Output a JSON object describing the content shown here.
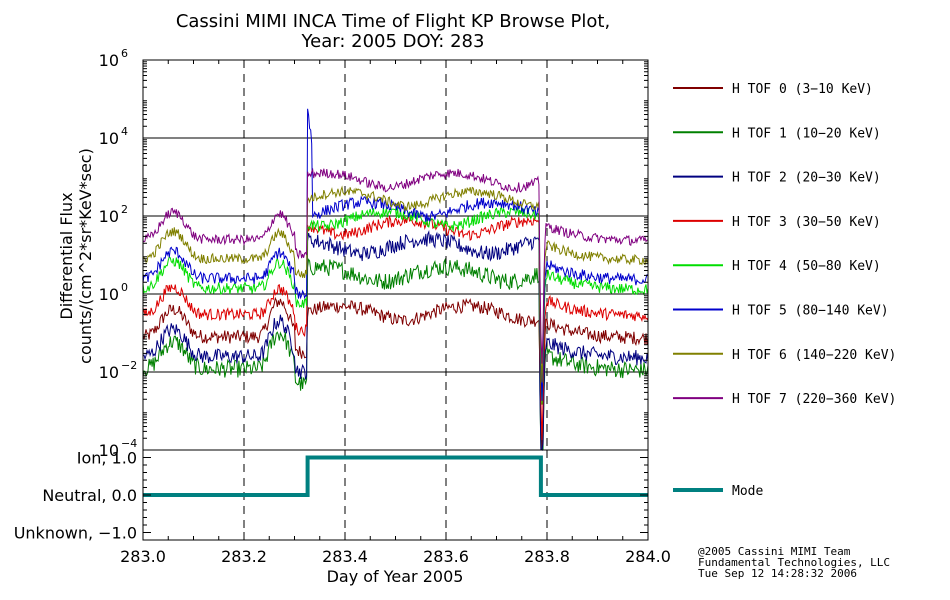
{
  "chart_data": [
    {
      "type": "line",
      "title": "Cassini MIMI INCA Time of Flight KP Browse Plot,",
      "subtitle": "Year: 2005 DOY: 283",
      "ylabel_line1": "Differential Flux",
      "ylabel_line2": "counts/(cm^2*sr*KeV*sec)",
      "yscale": "log",
      "ylim": [
        0.0001,
        1000000
      ],
      "y_ticks": [
        {
          "value": 1000000,
          "base": "10",
          "exp": "6"
        },
        {
          "value": 10000,
          "base": "10",
          "exp": "4"
        },
        {
          "value": 100,
          "base": "10",
          "exp": "2"
        },
        {
          "value": 1,
          "base": "10",
          "exp": "0"
        },
        {
          "value": 0.01,
          "base": "10",
          "exp": "−2"
        },
        {
          "value": 0.0001,
          "base": "10",
          "exp": "−4"
        }
      ],
      "xlim": [
        283.0,
        284.0
      ],
      "grid_vertical": [
        283.2,
        283.4,
        283.6,
        283.8
      ],
      "grid_horizontal": [
        10000,
        100,
        1,
        0.01
      ],
      "legend_position": "right",
      "series": [
        {
          "name": "H TOF 0 (3−10 KeV)",
          "color": "#800000",
          "level": 0.08,
          "active": 0.35,
          "noise": 0.35,
          "spike": 0
        },
        {
          "name": "H TOF 1 (10−20 KeV)",
          "color": "#008000",
          "level": 0.012,
          "active": 3.5,
          "noise": 0.45,
          "spike": 0
        },
        {
          "name": "H TOF 2 (20−30 KeV)",
          "color": "#000080",
          "level": 0.025,
          "active": 18,
          "noise": 0.4,
          "spike": 0
        },
        {
          "name": "H TOF 3 (30−50 KeV)",
          "color": "#dd0000",
          "level": 0.3,
          "active": 55,
          "noise": 0.3,
          "spike": 0
        },
        {
          "name": "H TOF 4 (50−80 KeV)",
          "color": "#00dd00",
          "level": 1.4,
          "active": 90,
          "noise": 0.3,
          "spike": 0
        },
        {
          "name": "H TOF 5 (80−140 KeV)",
          "color": "#0000cc",
          "level": 2.5,
          "active": 160,
          "noise": 0.3,
          "spike": 60000
        },
        {
          "name": "H TOF 6 (140−220 KeV)",
          "color": "#808000",
          "level": 8,
          "active": 300,
          "noise": 0.25,
          "spike": 0
        },
        {
          "name": "H TOF 7 (220−360 KeV)",
          "color": "#800080",
          "level": 25,
          "active": 900,
          "noise": 0.25,
          "spike": 0
        }
      ]
    },
    {
      "type": "line",
      "xlabel": "Day of Year 2005",
      "xlim": [
        283.0,
        284.0
      ],
      "x_ticks": [
        "283.0",
        "283.2",
        "283.4",
        "283.6",
        "283.8",
        "284.0"
      ],
      "ylim": [
        -1.2,
        1.2
      ],
      "y_ticks": [
        {
          "value": 1.0,
          "label": "Ion, 1.0"
        },
        {
          "value": 0.0,
          "label": "Neutral, 0.0"
        },
        {
          "value": -1.0,
          "label": "Unknown, −1.0"
        }
      ],
      "series": [
        {
          "name": "Mode",
          "color": "#008080",
          "x": [
            283.0,
            283.326,
            283.326,
            283.788,
            283.788,
            284.0
          ],
          "y": [
            0,
            0,
            1,
            1,
            0,
            0
          ]
        }
      ]
    }
  ],
  "credits": {
    "line1": "@2005 Cassini MIMI Team",
    "line2": "Fundamental Technologies, LLC",
    "line3": "Tue Sep 12 14:28:32 2006"
  }
}
